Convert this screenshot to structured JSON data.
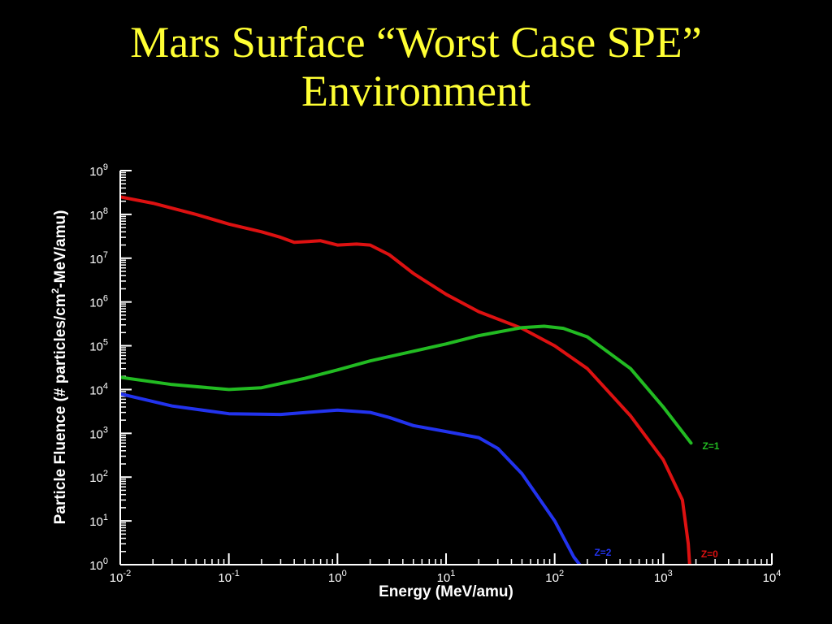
{
  "slide": {
    "title_line1": "Mars Surface “Worst Case SPE”",
    "title_line2": "Environment"
  },
  "chart_data": {
    "type": "line",
    "x_scale": "log",
    "y_scale": "log",
    "xlabel": "Energy (MeV/amu)",
    "ylabel": "Particle Fluence (# particles/cm",
    "ylabel_sup": "2",
    "ylabel_tail": "-MeV/amu)",
    "xlim": [
      0.01,
      10000
    ],
    "ylim": [
      1,
      1000000000
    ],
    "x_ticks": [
      {
        "value": 0.01,
        "base": "10",
        "exp": "-2"
      },
      {
        "value": 0.1,
        "base": "10",
        "exp": "-1"
      },
      {
        "value": 1,
        "base": "10",
        "exp": "0"
      },
      {
        "value": 10,
        "base": "10",
        "exp": "1"
      },
      {
        "value": 100,
        "base": "10",
        "exp": "2"
      },
      {
        "value": 1000,
        "base": "10",
        "exp": "3"
      },
      {
        "value": 10000,
        "base": "10",
        "exp": "4"
      }
    ],
    "y_ticks": [
      {
        "value": 1,
        "base": "10",
        "exp": "0"
      },
      {
        "value": 10,
        "base": "10",
        "exp": "1"
      },
      {
        "value": 100,
        "base": "10",
        "exp": "2"
      },
      {
        "value": 1000,
        "base": "10",
        "exp": "3"
      },
      {
        "value": 10000,
        "base": "10",
        "exp": "4"
      },
      {
        "value": 100000,
        "base": "10",
        "exp": "5"
      },
      {
        "value": 1000000,
        "base": "10",
        "exp": "6"
      },
      {
        "value": 10000000,
        "base": "10",
        "exp": "7"
      },
      {
        "value": 100000000,
        "base": "10",
        "exp": "8"
      },
      {
        "value": 1000000000,
        "base": "10",
        "exp": "9"
      }
    ],
    "series": [
      {
        "name": "Z=0",
        "color": "#dd1111",
        "x": [
          0.01,
          0.02,
          0.05,
          0.1,
          0.2,
          0.3,
          0.4,
          0.7,
          1.0,
          1.5,
          2,
          3,
          5,
          10,
          20,
          50,
          100,
          200,
          500,
          1000,
          1500,
          1700,
          1750
        ],
        "y": [
          250000000,
          180000000,
          100000000,
          60000000,
          40000000,
          30000000,
          23000000,
          25000000,
          20000000,
          21000000,
          20000000,
          12000000,
          4500000,
          1500000,
          600000,
          250000,
          100000,
          30000,
          2500,
          250,
          30,
          3,
          1
        ]
      },
      {
        "name": "Z=1",
        "color": "#22bb22",
        "x": [
          0.01,
          0.03,
          0.1,
          0.2,
          0.5,
          1,
          2,
          5,
          10,
          20,
          50,
          80,
          120,
          200,
          500,
          1000,
          1800
        ],
        "y": [
          19000,
          13000,
          10000,
          11000,
          18000,
          28000,
          45000,
          75000,
          110000,
          170000,
          260000,
          280000,
          250000,
          160000,
          30000,
          4000,
          600
        ]
      },
      {
        "name": "Z=2",
        "color": "#2233ee",
        "x": [
          0.01,
          0.03,
          0.1,
          0.3,
          1,
          2,
          3,
          5,
          10,
          20,
          30,
          50,
          100,
          150,
          170
        ],
        "y": [
          8000,
          4200,
          2800,
          2700,
          3400,
          3000,
          2300,
          1500,
          1100,
          800,
          450,
          120,
          10,
          1.5,
          1
        ]
      }
    ]
  }
}
